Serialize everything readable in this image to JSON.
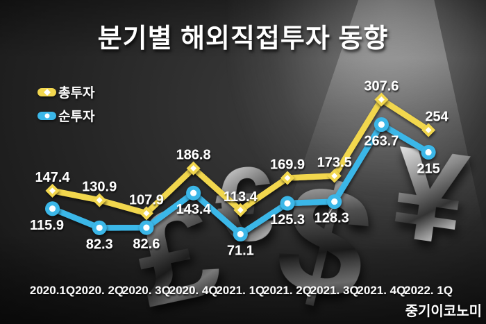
{
  "title": "분기별 해외직접투자 동향",
  "watermark": "중기이코노미",
  "colors": {
    "total_series": "#F2D74E",
    "net_series": "#3BB7E8",
    "label_text": "#FFFFFF",
    "background_dark": "#181818"
  },
  "decor_symbols": [
    {
      "name": "pound-sign",
      "glyph": "£"
    },
    {
      "name": "euro-sign",
      "glyph": "€"
    },
    {
      "name": "dollar-sign",
      "glyph": "$"
    },
    {
      "name": "yen-sign",
      "glyph": "¥"
    }
  ],
  "chart_data": {
    "type": "line",
    "title": "분기별 해외직접투자 동향",
    "categories": [
      "2020.1Q",
      "2020. 2Q",
      "2020. 3Q",
      "2020. 4Q",
      "2021. 1Q",
      "2021. 2Q",
      "2021. 3Q",
      "2021. 4Q",
      "2022. 1Q"
    ],
    "series": [
      {
        "name": "총투자",
        "color": "#F2D74E",
        "marker": "diamond",
        "label_position": "above",
        "values": [
          147.4,
          130.9,
          107.9,
          186.8,
          113.4,
          169.9,
          173.5,
          307.6,
          254
        ],
        "labels": [
          "147.4",
          "130.9",
          "107.9",
          "186.8",
          "113.4",
          "169.9",
          "173.5",
          "307.6",
          "254"
        ]
      },
      {
        "name": "순투자",
        "color": "#3BB7E8",
        "marker": "circle",
        "label_position": "below",
        "values": [
          115.9,
          82.3,
          82.6,
          143.4,
          71.1,
          125.3,
          128.3,
          263.7,
          215
        ],
        "labels": [
          "115.9",
          "82.3",
          "82.6",
          "143.4",
          "71.1",
          "125.3",
          "128.3",
          "263.7",
          "215"
        ]
      }
    ],
    "xlabel": "",
    "ylabel": "",
    "ylim": [
      60,
      330
    ],
    "grid": false,
    "axes_visible": false,
    "legend_position": "top-left",
    "data_labels": true
  }
}
